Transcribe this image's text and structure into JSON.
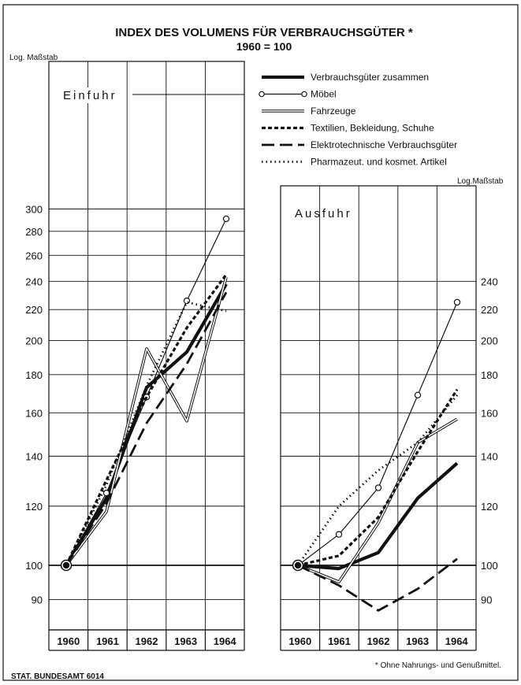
{
  "chart_data": {
    "type": "line",
    "title": "INDEX DES VOLUMENS FÜR VERBRAUCHSGÜTER *",
    "subtitle": "1960 = 100",
    "yscale": "log",
    "grid": true,
    "legend_placement": "top-right",
    "x": [
      "1960",
      "1961",
      "1962",
      "1963",
      "1964"
    ],
    "series_styles": [
      {
        "name": "Verbrauchsgüter zusammen",
        "style": "thick-solid",
        "color": "#000000"
      },
      {
        "name": "Möbel",
        "style": "thin-solid-circle-markers",
        "color": "#000000"
      },
      {
        "name": "Fahrzeuge",
        "style": "double-line",
        "color": "#000000"
      },
      {
        "name": "Textilien, Bekleidung, Schuhe",
        "style": "short-dash",
        "color": "#000000"
      },
      {
        "name": "Elektrotechnische Verbrauchsgüter",
        "style": "long-dash",
        "color": "#000000"
      },
      {
        "name": "Pharmazeut. und kosmet. Artikel",
        "style": "dotted",
        "color": "#000000"
      }
    ],
    "panels": [
      {
        "label": "Einfuhr",
        "yaxis_label": "Log. Maßstab",
        "yaxis_side": "left",
        "ylim": [
          86,
          325
        ],
        "yticks": [
          90,
          100,
          120,
          140,
          160,
          180,
          200,
          220,
          240,
          260,
          280,
          300
        ],
        "series": [
          {
            "name": "Verbrauchsgüter zusammen",
            "values": [
              100,
              123,
              173,
              193,
              238
            ]
          },
          {
            "name": "Möbel",
            "values": [
              100,
              125,
              168,
              226,
              291
            ]
          },
          {
            "name": "Fahrzeuge",
            "values": [
              100,
              118,
              195,
              156,
              243
            ]
          },
          {
            "name": "Textilien, Bekleidung, Schuhe",
            "values": [
              100,
              130,
              168,
              208,
              245
            ]
          },
          {
            "name": "Elektrotechnische Verbrauchsgüter",
            "values": [
              100,
              121,
              155,
              186,
              232
            ]
          },
          {
            "name": "Pharmazeut. und kosmet. Artikel",
            "values": [
              100,
              128,
              174,
              225,
              219
            ]
          }
        ]
      },
      {
        "label": "Ausfuhr",
        "yaxis_label": "Log.Maßstab",
        "yaxis_side": "right",
        "ylim": [
          86,
          245
        ],
        "yticks": [
          90,
          100,
          120,
          140,
          160,
          180,
          200,
          220,
          240
        ],
        "series": [
          {
            "name": "Verbrauchsgüter zusammen",
            "values": [
              100,
              99,
              104,
              123,
              137
            ]
          },
          {
            "name": "Möbel",
            "values": [
              100,
              110,
              127,
              169,
              225
            ]
          },
          {
            "name": "Fahrzeuge",
            "values": [
              100,
              95,
              114,
              146,
              157
            ]
          },
          {
            "name": "Textilien, Bekleidung, Schuhe",
            "values": [
              100,
              103,
              116,
              142,
              172
            ]
          },
          {
            "name": "Elektrotechnische Verbrauchsgüter",
            "values": [
              100,
              94,
              87,
              93,
              102
            ]
          },
          {
            "name": "Pharmazeut. und kosmet. Artikel",
            "values": [
              100,
              120,
              134,
              146,
              169
            ]
          }
        ]
      }
    ]
  },
  "footer": {
    "source": "STAT. BUNDESAMT 6014",
    "footnote": "* Ohne Nahrungs- und Genußmittel."
  }
}
